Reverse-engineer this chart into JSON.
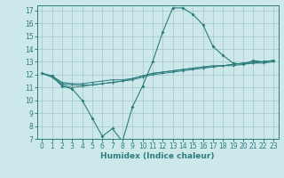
{
  "xlabel": "Humidex (Indice chaleur)",
  "background_color": "#cce8ea",
  "grid_color": "#aacccc",
  "line_color": "#2d7d7d",
  "xlim": [
    -0.5,
    23.5
  ],
  "ylim": [
    7,
    17.4
  ],
  "xticks": [
    0,
    1,
    2,
    3,
    4,
    5,
    6,
    7,
    8,
    9,
    10,
    11,
    12,
    13,
    14,
    15,
    16,
    17,
    18,
    19,
    20,
    21,
    22,
    23
  ],
  "yticks": [
    7,
    8,
    9,
    10,
    11,
    12,
    13,
    14,
    15,
    16,
    17
  ],
  "lines": [
    {
      "x": [
        0,
        1,
        2,
        3,
        4,
        5,
        6,
        7,
        8,
        9,
        10,
        11,
        12,
        13,
        14,
        15,
        16,
        17,
        18,
        19,
        20,
        21,
        22,
        23
      ],
      "y": [
        12.1,
        11.9,
        11.1,
        10.9,
        10.0,
        8.6,
        7.2,
        7.8,
        6.8,
        9.5,
        11.1,
        13.0,
        15.3,
        17.2,
        17.2,
        16.7,
        15.9,
        14.2,
        13.5,
        12.9,
        12.8,
        13.1,
        13.0,
        13.1
      ]
    },
    {
      "x": [
        0,
        1,
        2,
        3,
        4,
        5,
        6,
        7,
        8,
        9,
        10,
        11,
        12,
        13,
        14,
        15,
        16,
        17,
        18,
        19,
        20,
        21,
        22,
        23
      ],
      "y": [
        12.1,
        11.9,
        11.3,
        11.2,
        11.2,
        11.2,
        11.3,
        11.4,
        11.5,
        11.6,
        11.8,
        12.0,
        12.1,
        12.2,
        12.3,
        12.4,
        12.5,
        12.6,
        12.7,
        12.7,
        12.8,
        12.9,
        12.9,
        13.0
      ]
    },
    {
      "x": [
        0,
        1,
        2,
        3,
        4,
        5,
        6,
        7,
        8,
        9,
        10,
        11,
        12,
        13,
        14,
        15,
        16,
        17,
        18,
        19,
        20,
        21,
        22,
        23
      ],
      "y": [
        12.1,
        11.9,
        11.4,
        11.3,
        11.3,
        11.4,
        11.5,
        11.6,
        11.6,
        11.7,
        11.9,
        12.1,
        12.2,
        12.3,
        12.4,
        12.5,
        12.6,
        12.6,
        12.7,
        12.8,
        12.9,
        13.0,
        13.0,
        13.1
      ]
    },
    {
      "x": [
        0,
        1,
        2,
        3,
        4,
        5,
        6,
        7,
        8,
        9,
        10,
        11,
        12,
        13,
        14,
        15,
        16,
        17,
        18,
        19,
        20,
        21,
        22,
        23
      ],
      "y": [
        12.1,
        11.8,
        11.2,
        11.0,
        11.1,
        11.2,
        11.3,
        11.4,
        11.5,
        11.7,
        11.9,
        12.1,
        12.2,
        12.3,
        12.4,
        12.5,
        12.6,
        12.7,
        12.7,
        12.8,
        12.9,
        12.9,
        13.0,
        13.1
      ]
    }
  ]
}
